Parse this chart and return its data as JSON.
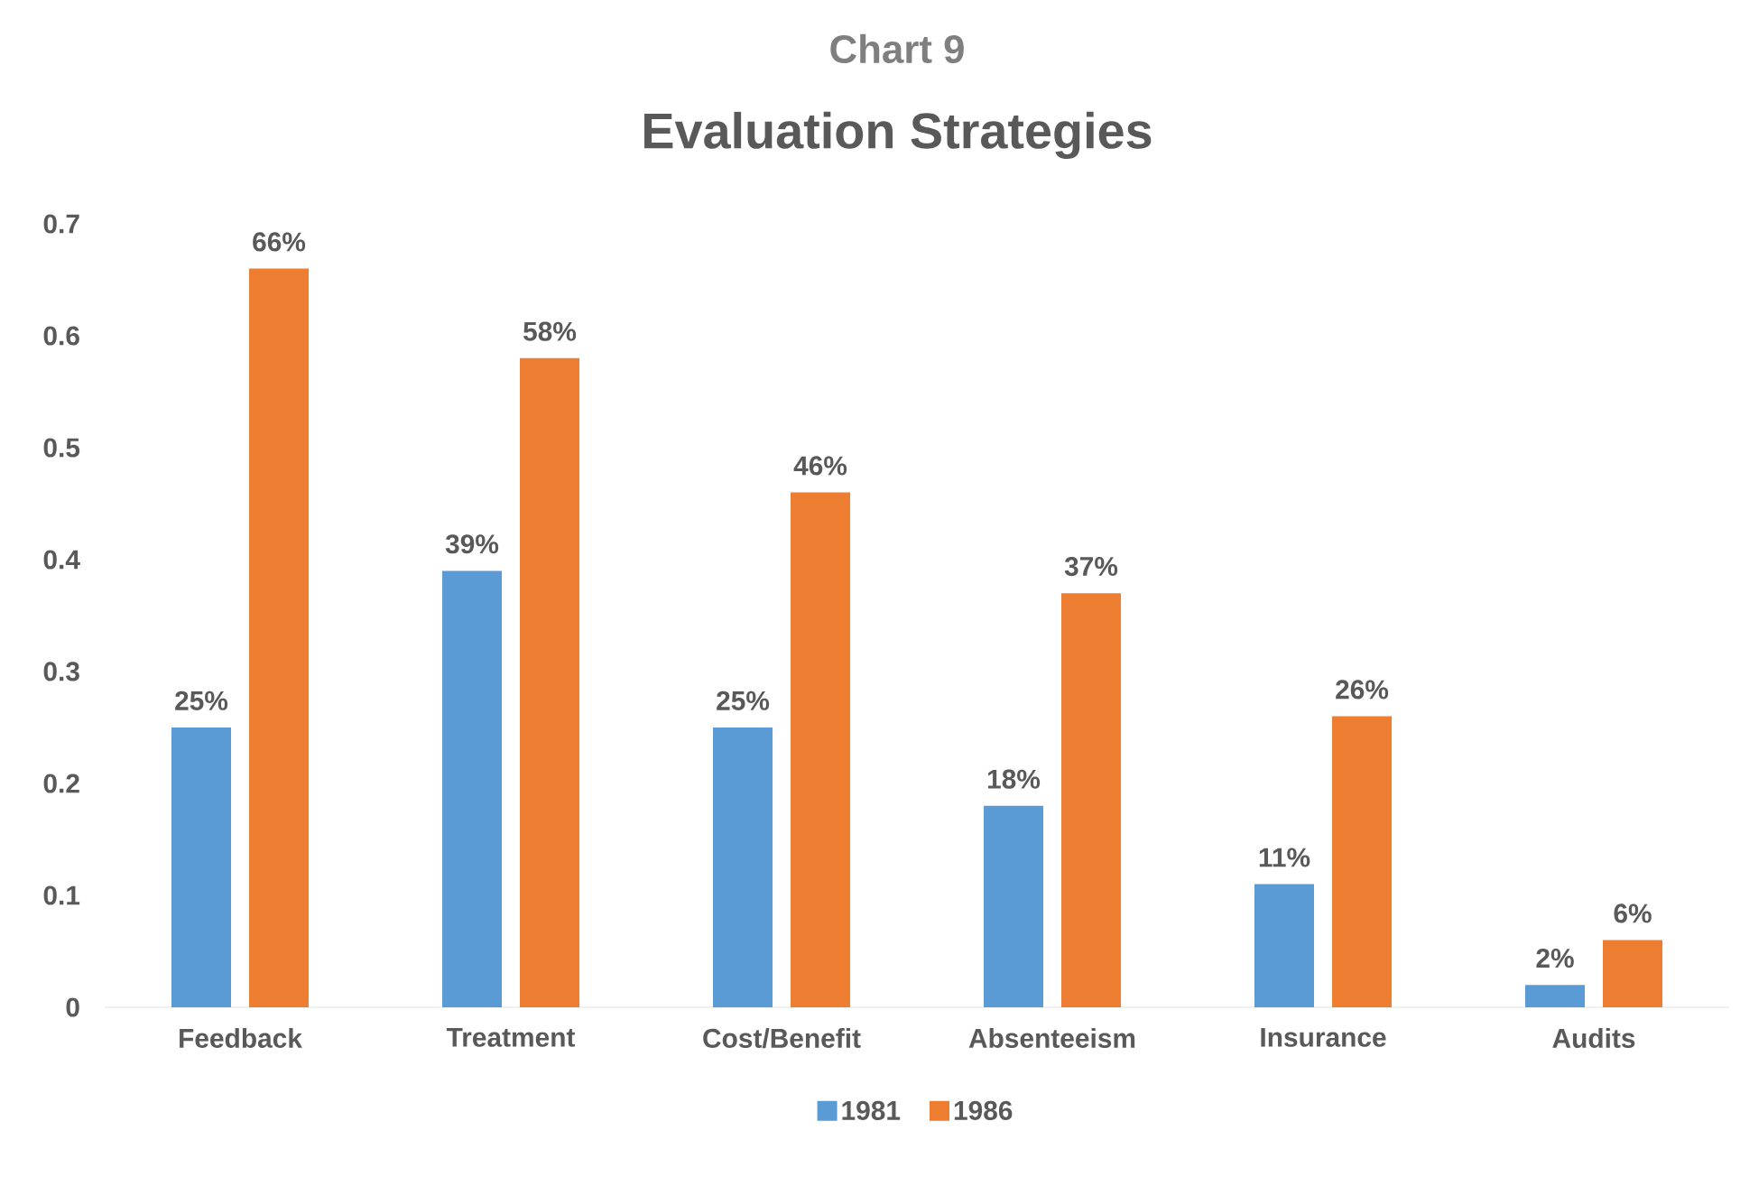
{
  "chart_data": {
    "type": "bar",
    "title": "Evaluation Strategies",
    "subtitle": "Chart 9",
    "categories": [
      "Feedback",
      "Treatment",
      "Cost/Benefit",
      "Absenteeism",
      "Insurance",
      "Audits"
    ],
    "series": [
      {
        "name": "1981",
        "color": "#5b9bd5",
        "values": [
          0.25,
          0.39,
          0.25,
          0.18,
          0.11,
          0.02
        ],
        "value_labels": [
          "25%",
          "39%",
          "25%",
          "18%",
          "11%",
          "2%"
        ]
      },
      {
        "name": "1986",
        "color": "#ed7d31",
        "values": [
          0.66,
          0.58,
          0.46,
          0.37,
          0.26,
          0.06
        ],
        "value_labels": [
          "66%",
          "58%",
          "46%",
          "37%",
          "26%",
          "6%"
        ]
      }
    ],
    "ylim": [
      0,
      0.7
    ],
    "yticks": [
      0,
      0.1,
      0.2,
      0.3,
      0.4,
      0.5,
      0.6,
      0.7
    ],
    "legend": "bottom"
  }
}
